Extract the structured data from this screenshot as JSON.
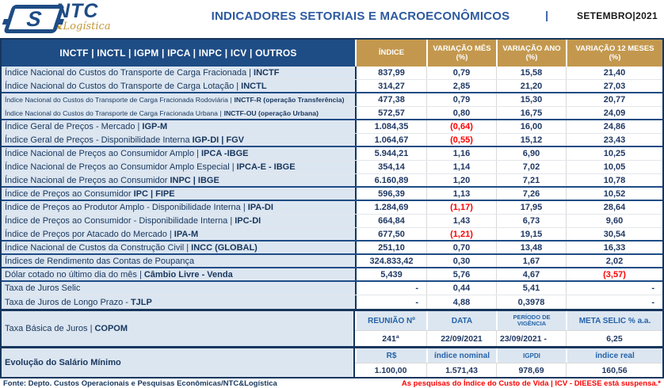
{
  "header": {
    "logo": {
      "s": "S",
      "ntc": "NTC",
      "amp": "&",
      "logistica": "Logística"
    },
    "title": "INDICADORES SETORIAIS E MACROECONÔMICOS",
    "separator": "|",
    "period": "SETEMBRO|2021"
  },
  "banner": {
    "nav": "INCTF | INCTL | IGPM | IPCA | INPC | ICV | OUTROS",
    "cols": [
      {
        "l1": "ÍNDICE",
        "l2": ""
      },
      {
        "l1": "VARIAÇÃO MÊS",
        "l2": "(%)"
      },
      {
        "l1": "VARIAÇÃO ANO",
        "l2": "(%)"
      },
      {
        "l1": "VARIAÇÃO 12 MESES",
        "l2": "(%)"
      }
    ]
  },
  "table": {
    "rows": [
      {
        "name": "Índice Nacional do Custos do Transporte de Carga Fracionada |",
        "code": "INCTF",
        "indice": "837,99",
        "mes": "0,79",
        "ano": "15,58",
        "m12": "21,40"
      },
      {
        "name": "Índice Nacional do Custos do Transporte de Carga Lotação |",
        "code": "INCTL",
        "indice": "314,27",
        "mes": "2,85",
        "ano": "21,20",
        "m12": "27,03"
      },
      {
        "name": "Índice Nacional do Custos do Transporte de Carga Fracionada Rodoviária |",
        "code": "INCTF-R (operação Transferência)",
        "indice": "477,38",
        "mes": "0,79",
        "ano": "15,30",
        "m12": "20,77"
      },
      {
        "name": "Índice Nacional do Custos do Transporte de Carga Fracionada Urbana |",
        "code": "INCTF-OU (operação Urbana)",
        "indice": "572,57",
        "mes": "0,80",
        "ano": "16,75",
        "m12": "24,09"
      },
      {
        "name": "Índice Geral de Preços - Mercado |",
        "code": "IGP-M",
        "indice": "1.084,35",
        "mes": "(0,64)",
        "ano": "16,00",
        "m12": "24,86"
      },
      {
        "name": "Índice Geral de Preços - Disponibilidade Interna",
        "code": "IGP-DI | FGV",
        "indice": "1.064,67",
        "mes": "(0,55)",
        "ano": "15,12",
        "m12": "23,43"
      },
      {
        "name": "Índice Nacional de Preços ao Consumidor Amplo |",
        "code": "IPCA -IBGE",
        "indice": "5.944,21",
        "mes": "1,16",
        "ano": "6,90",
        "m12": "10,25"
      },
      {
        "name": "Índice Nacional de Preços ao Consumidor Amplo Especial |",
        "code": "IPCA-E - IBGE",
        "indice": "354,14",
        "mes": "1,14",
        "ano": "7,02",
        "m12": "10,05"
      },
      {
        "name": "Índice Nacional de Preços ao Consumidor",
        "code": "INPC | IBGE",
        "indice": "6.160,89",
        "mes": "1,20",
        "ano": "7,21",
        "m12": "10,78"
      },
      {
        "name": "Índice de Preços ao Consumidor",
        "code": "IPC | FIPE",
        "indice": "596,39",
        "mes": "1,13",
        "ano": "7,26",
        "m12": "10,52"
      },
      {
        "name": "Índice de Preços ao Produtor Amplo - Disponibilidade Interna |",
        "code": "IPA-DI",
        "indice": "1.284,69",
        "mes": "(1,17)",
        "ano": "17,95",
        "m12": "28,64"
      },
      {
        "name": "Índice de Preços ao Consumidor - Disponibilidade Interna |",
        "code": "IPC-DI",
        "indice": "664,84",
        "mes": "1,43",
        "ano": "6,73",
        "m12": "9,60"
      },
      {
        "name": "Índice de Preços por Atacado do Mercado |",
        "code": "IPA-M",
        "indice": "677,50",
        "mes": "(1,21)",
        "ano": "19,15",
        "m12": "30,54"
      },
      {
        "name": "Índice Nacional de Custos da Construção Civil |",
        "code": "INCC (GLOBAL)",
        "indice": "251,10",
        "mes": "0,70",
        "ano": "13,48",
        "m12": "16,33"
      },
      {
        "name": "Índices de Rendimento das Contas de Poupança",
        "code": "",
        "indice": "324.833,42",
        "mes": "0,30",
        "ano": "1,67",
        "m12": "2,02"
      },
      {
        "name": "Dólar cotado no último dia do mês |",
        "code": "Câmbio Livre - Venda",
        "indice": "5,439",
        "mes": "5,76",
        "ano": "4,67",
        "m12": "(3,57)"
      },
      {
        "name": "Taxa de Juros Selic",
        "code": "",
        "indice": "-",
        "mes": "0,44",
        "ano": "5,41",
        "m12": "-"
      },
      {
        "name": "Taxa de Juros de Longo Prazo -",
        "code": "TJLP",
        "indice": "-",
        "mes": "4,88",
        "ano": "0,3978",
        "m12": "-"
      }
    ]
  },
  "copom": {
    "label_name": "Taxa Básica de Juros |",
    "label_code": "COPOM",
    "headers": [
      "REUNIÃO Nº",
      "DATA",
      "PERÍODO DE VIGÊNCIA",
      "META SELIC % a.a."
    ],
    "values": [
      "241ª",
      "22/09/2021",
      "23/09/2021 -",
      "6,25"
    ]
  },
  "salario": {
    "label": "Evolução do Salário Mínimo",
    "headers": [
      "R$",
      "índice nominal",
      "IGPDI",
      "índice real"
    ],
    "values": [
      "1.100,00",
      "1.571,43",
      "978,69",
      "160,56"
    ]
  },
  "footer": {
    "fonte": "Fonte: Depto. Custos Operacionais e Pesquisas Econômicas/NTC&Logística",
    "nota": "As pesquisas do Índice do Custo de Vida | ICV - DIEESE está suspensa.*"
  },
  "colors": {
    "navy": "#17365D",
    "band_blue": "#1E4C85",
    "gold": "#C3984E",
    "light_blue": "#DCE6F1",
    "header_text_blue": "#2563A8",
    "title_blue": "#2D5AA0",
    "negative_red": "#FF0000"
  }
}
